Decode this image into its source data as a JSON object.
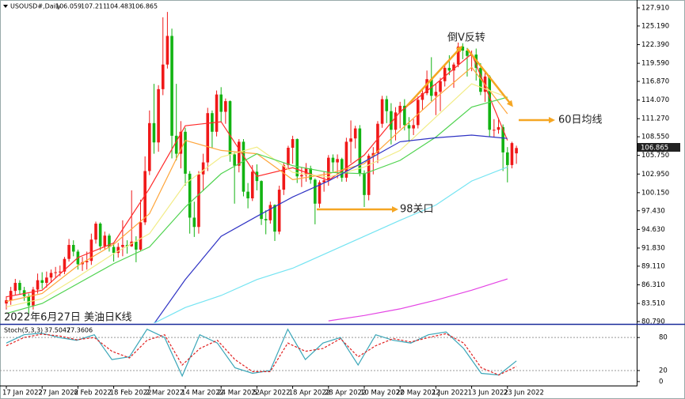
{
  "chart_data": [
    {
      "type": "candlestick",
      "symbol": "USOUSD#,Daily",
      "categories": [
        "17 Jan 2022",
        null,
        null,
        null,
        null,
        null,
        null,
        null,
        "27 Jan 2022",
        null,
        null,
        null,
        null,
        null,
        null,
        null,
        "8 Feb 2022",
        null,
        null,
        null,
        null,
        null,
        null,
        null,
        "18 Feb 2022",
        null,
        null,
        null,
        null,
        null,
        null,
        null,
        "2 Mar 2022",
        null,
        null,
        null,
        null,
        null,
        null,
        null,
        "14 Mar 2022",
        null,
        null,
        null,
        null,
        null,
        null,
        null,
        "24 Mar 2022",
        null,
        null,
        null,
        null,
        null,
        null,
        null,
        "5 Apr 2022",
        null,
        null,
        null,
        null,
        null,
        null,
        null,
        "18 Apr 2022",
        null,
        null,
        null,
        null,
        null,
        null,
        null,
        "28 Apr 2022",
        null,
        null,
        null,
        null,
        null,
        null,
        null,
        "10 May 2022",
        null,
        null,
        null,
        null,
        null,
        null,
        null,
        "20 May 2022",
        null,
        null,
        null,
        null,
        null,
        null,
        null,
        "1 Jun 2022",
        null,
        null,
        null,
        null,
        null,
        null,
        null,
        "13 Jun 2022",
        null,
        null,
        null,
        null,
        null,
        null,
        null,
        "23 Jun 2022",
        null,
        null
      ],
      "candles": [
        [
          83.5,
          84.6,
          82.6,
          84.0
        ],
        [
          84.0,
          86.0,
          83.3,
          85.4
        ],
        [
          85.4,
          87.2,
          84.8,
          86.6
        ],
        [
          86.6,
          87.0,
          84.9,
          85.5
        ],
        [
          85.5,
          86.0,
          83.9,
          84.6
        ],
        [
          84.6,
          85.0,
          81.9,
          83.2
        ],
        [
          83.2,
          86.0,
          82.6,
          85.6
        ],
        [
          85.6,
          88.0,
          85.0,
          87.0
        ],
        [
          87.0,
          88.2,
          85.7,
          86.6
        ],
        [
          86.6,
          88.3,
          85.9,
          87.4
        ],
        [
          87.4,
          88.6,
          86.6,
          88.1
        ],
        [
          88.1,
          89.0,
          87.3,
          88.2
        ],
        [
          88.2,
          89.2,
          87.6,
          88.3
        ],
        [
          88.3,
          90.5,
          87.9,
          90.2
        ],
        [
          90.2,
          93.2,
          89.8,
          92.3
        ],
        [
          92.3,
          93.0,
          90.6,
          91.3
        ],
        [
          91.3,
          91.6,
          88.6,
          89.4
        ],
        [
          89.4,
          90.5,
          88.4,
          89.7
        ],
        [
          89.7,
          91.3,
          88.6,
          89.9
        ],
        [
          89.9,
          94.0,
          89.3,
          93.1
        ],
        [
          93.1,
          95.8,
          92.5,
          95.5
        ],
        [
          95.5,
          95.7,
          91.5,
          92.1
        ],
        [
          92.1,
          94.3,
          91.6,
          93.7
        ],
        [
          93.7,
          94.0,
          91.3,
          92.0
        ],
        [
          92.0,
          92.6,
          89.8,
          91.1
        ],
        [
          91.1,
          92.6,
          90.4,
          92.0
        ],
        [
          92.0,
          96.0,
          90.6,
          92.3
        ],
        [
          92.3,
          93.0,
          91.0,
          92.1
        ],
        [
          92.1,
          100.5,
          92.0,
          92.8
        ],
        [
          92.8,
          93.6,
          89.7,
          91.6
        ],
        [
          91.6,
          99.1,
          91.4,
          95.7
        ],
        [
          95.7,
          105.6,
          95.3,
          103.4
        ],
        [
          103.4,
          112.5,
          102.8,
          110.6
        ],
        [
          110.6,
          116.5,
          106.0,
          107.7
        ],
        [
          107.7,
          116.3,
          106.3,
          115.7
        ],
        [
          115.7,
          126.5,
          114.8,
          119.4
        ],
        [
          119.4,
          127.3,
          118.8,
          123.7
        ],
        [
          123.7,
          124.8,
          105.3,
          108.7
        ],
        [
          108.7,
          116.5,
          105.0,
          106.0
        ],
        [
          106.0,
          110.9,
          103.8,
          109.3
        ],
        [
          109.3,
          109.9,
          101.2,
          103.0
        ],
        [
          103.0,
          103.4,
          94.0,
          96.4
        ],
        [
          96.4,
          98.8,
          93.5,
          95.0
        ],
        [
          95.0,
          103.4,
          94.0,
          102.9
        ],
        [
          102.9,
          106.0,
          100.4,
          104.7
        ],
        [
          104.7,
          112.9,
          103.4,
          112.1
        ],
        [
          112.1,
          112.5,
          106.9,
          109.3
        ],
        [
          109.3,
          115.5,
          108.6,
          114.9
        ],
        [
          114.9,
          116.0,
          110.7,
          112.3
        ],
        [
          112.3,
          114.3,
          110.5,
          113.9
        ],
        [
          113.9,
          114.0,
          104.8,
          105.9
        ],
        [
          105.9,
          106.2,
          98.5,
          104.2
        ],
        [
          104.2,
          108.2,
          103.2,
          107.8
        ],
        [
          107.8,
          108.2,
          99.6,
          100.3
        ],
        [
          100.3,
          101.6,
          97.8,
          99.3
        ],
        [
          99.3,
          104.3,
          98.9,
          103.3
        ],
        [
          103.3,
          104.4,
          100.5,
          101.9
        ],
        [
          101.9,
          102.0,
          95.3,
          96.2
        ],
        [
          96.2,
          97.5,
          93.9,
          96.0
        ],
        [
          96.0,
          98.8,
          95.5,
          98.3
        ],
        [
          98.3,
          98.4,
          92.9,
          94.3
        ],
        [
          94.3,
          101.2,
          93.9,
          100.6
        ],
        [
          100.6,
          104.7,
          99.8,
          104.3
        ],
        [
          104.3,
          107.2,
          103.7,
          106.9
        ],
        [
          106.9,
          108.7,
          104.5,
          108.2
        ],
        [
          108.2,
          108.3,
          101.6,
          102.6
        ],
        [
          102.6,
          104.0,
          101.0,
          102.8
        ],
        [
          102.8,
          104.6,
          101.8,
          103.8
        ],
        [
          103.8,
          104.2,
          101.5,
          102.1
        ],
        [
          102.1,
          102.3,
          95.4,
          98.5
        ],
        [
          98.5,
          102.0,
          97.9,
          101.7
        ],
        [
          101.7,
          103.3,
          100.3,
          102.0
        ],
        [
          102.0,
          105.8,
          101.2,
          105.4
        ],
        [
          105.4,
          105.9,
          103.3,
          104.7
        ],
        [
          104.7,
          105.9,
          102.3,
          105.2
        ],
        [
          105.2,
          105.4,
          101.8,
          102.4
        ],
        [
          102.4,
          108.4,
          101.8,
          107.8
        ],
        [
          107.8,
          111.0,
          104.6,
          108.3
        ],
        [
          108.3,
          110.2,
          106.8,
          109.8
        ],
        [
          109.8,
          110.3,
          102.6,
          103.1
        ],
        [
          103.1,
          103.5,
          98.0,
          99.8
        ],
        [
          99.8,
          106.0,
          99.0,
          105.7
        ],
        [
          105.7,
          107.0,
          102.9,
          106.1
        ],
        [
          106.1,
          110.9,
          104.6,
          110.5
        ],
        [
          110.5,
          114.7,
          109.9,
          114.2
        ],
        [
          114.2,
          114.7,
          110.6,
          112.4
        ],
        [
          112.4,
          113.6,
          107.4,
          109.6
        ],
        [
          109.6,
          113.0,
          108.0,
          112.2
        ],
        [
          112.2,
          113.8,
          109.8,
          113.2
        ],
        [
          113.2,
          114.2,
          109.5,
          110.3
        ],
        [
          110.3,
          111.5,
          107.7,
          109.8
        ],
        [
          109.8,
          111.2,
          108.8,
          110.3
        ],
        [
          110.3,
          114.6,
          109.8,
          114.1
        ],
        [
          114.1,
          115.5,
          112.6,
          115.1
        ],
        [
          115.1,
          118.5,
          114.8,
          117.2
        ],
        [
          117.2,
          120.5,
          113.9,
          114.7
        ],
        [
          114.7,
          116.5,
          111.8,
          115.3
        ],
        [
          115.3,
          117.4,
          112.4,
          116.9
        ],
        [
          116.9,
          119.5,
          116.1,
          118.9
        ],
        [
          118.9,
          120.8,
          117.8,
          118.5
        ],
        [
          118.5,
          119.7,
          115.9,
          119.4
        ],
        [
          119.4,
          122.7,
          119.0,
          122.1
        ],
        [
          122.1,
          122.6,
          120.2,
          121.5
        ],
        [
          121.5,
          121.9,
          117.6,
          120.7
        ],
        [
          120.7,
          121.5,
          118.4,
          120.9
        ],
        [
          120.9,
          121.8,
          117.0,
          118.9
        ],
        [
          118.9,
          119.6,
          114.8,
          115.3
        ],
        [
          115.3,
          118.3,
          113.8,
          117.6
        ],
        [
          117.6,
          117.8,
          108.6,
          109.6
        ],
        [
          109.6,
          111.2,
          108.5,
          109.6
        ],
        [
          109.6,
          111.4,
          109.0,
          110.0
        ],
        [
          110.0,
          110.4,
          103.4,
          106.2
        ],
        [
          106.2,
          107.0,
          101.7,
          104.3
        ],
        [
          104.3,
          107.8,
          103.8,
          107.6
        ],
        [
          106.059,
          107.211,
          104.483,
          106.865
        ]
      ],
      "up_color": "#f01818",
      "down_color": "#12b312",
      "lines": [
        {
          "color": "#ff2a2a",
          "values": [
            84.5,
            85.5,
            90.4,
            92.6,
            100.8,
            110.2,
            110.8,
            102.6,
            103.9,
            102.0,
            105.8,
            112.3,
            116.5,
            121.0,
            108.0
          ]
        },
        {
          "color": "#ffa53a",
          "values": [
            83.8,
            85.0,
            89.2,
            92.4,
            97.0,
            108.0,
            106.5,
            106.0,
            102.1,
            103.0,
            104.5,
            109.5,
            114.4,
            119.0,
            112.0
          ]
        },
        {
          "color": "#f2ec86",
          "values": [
            83.0,
            84.2,
            87.5,
            91.0,
            94.0,
            101.5,
            105.5,
            107.0,
            103.2,
            102.5,
            104.0,
            106.5,
            111.5,
            116.5,
            114.5
          ]
        },
        {
          "color": "#4fd34f",
          "values": [
            82.0,
            83.5,
            86.5,
            89.5,
            92.0,
            98.0,
            103.0,
            106.0,
            104.2,
            103.2,
            103.0,
            105.0,
            108.5,
            113.0,
            114.5
          ]
        },
        {
          "color": "#2f33c4",
          "values": [
            null,
            null,
            null,
            null,
            79.5,
            87.1,
            93.6,
            96.6,
            99.5,
            101.9,
            104.8,
            107.8,
            108.4,
            108.8,
            108.3
          ]
        },
        {
          "color": "#74e4f2",
          "values": [
            null,
            null,
            null,
            null,
            80.2,
            82.9,
            84.7,
            87.1,
            88.8,
            91.2,
            93.6,
            96.0,
            98.3,
            101.9,
            104.0
          ]
        },
        {
          "color": "#e444e4",
          "values": [
            null,
            null,
            null,
            null,
            null,
            null,
            null,
            null,
            null,
            80.9,
            81.7,
            82.7,
            84.0,
            85.5,
            87.2
          ]
        }
      ],
      "ylim": [
        80.55,
        128.74
      ],
      "yticks": [
        {
          "value": 127.91,
          "label": "127.910"
        },
        {
          "value": 125.19,
          "label": "125.190"
        },
        {
          "value": 122.39,
          "label": "122.390"
        },
        {
          "value": 119.59,
          "label": "119.590"
        },
        {
          "value": 116.87,
          "label": "116.870"
        },
        {
          "value": 114.07,
          "label": "114.070"
        },
        {
          "value": 111.27,
          "label": "111.270"
        },
        {
          "value": 108.55,
          "label": "108.550"
        },
        {
          "value": 105.75,
          "label": "105.750"
        },
        {
          "value": 102.95,
          "label": "102.950"
        },
        {
          "value": 100.15,
          "label": "100.150"
        },
        {
          "value": 97.43,
          "label": "97.430"
        },
        {
          "value": 94.63,
          "label": "94.630"
        },
        {
          "value": 91.83,
          "label": "91.830"
        },
        {
          "value": 89.11,
          "label": "89.110"
        },
        {
          "value": 86.31,
          "label": "86.310"
        },
        {
          "value": 83.51,
          "label": "83.510"
        },
        {
          "value": 80.79,
          "label": "80.790"
        }
      ],
      "annotations": [
        "倒V反转",
        "60日均线",
        "98关口",
        "2022年6月27日 美油日K线"
      ]
    },
    {
      "type": "stochastic",
      "title": "Stoch(5,3,3)",
      "series": [
        {
          "color": "#3aa6b8",
          "values": [
            70,
            85,
            88,
            80,
            75,
            85,
            40,
            45,
            95,
            80,
            10,
            85,
            70,
            25,
            15,
            20,
            95,
            40,
            70,
            80,
            30,
            85,
            75,
            70,
            85,
            90,
            60,
            15,
            12,
            37.5047
          ]
        },
        {
          "color": "#e02020",
          "dashed": true,
          "values": [
            65,
            80,
            86,
            83,
            76,
            80,
            55,
            43,
            75,
            85,
            30,
            60,
            75,
            40,
            18,
            18,
            70,
            55,
            60,
            78,
            45,
            65,
            78,
            72,
            80,
            87,
            70,
            25,
            12,
            27.3606
          ]
        }
      ],
      "ylim": [
        -7.3,
        101.8
      ],
      "yticks": [
        80,
        20,
        0
      ],
      "levels": [
        80,
        20
      ]
    }
  ]
}
